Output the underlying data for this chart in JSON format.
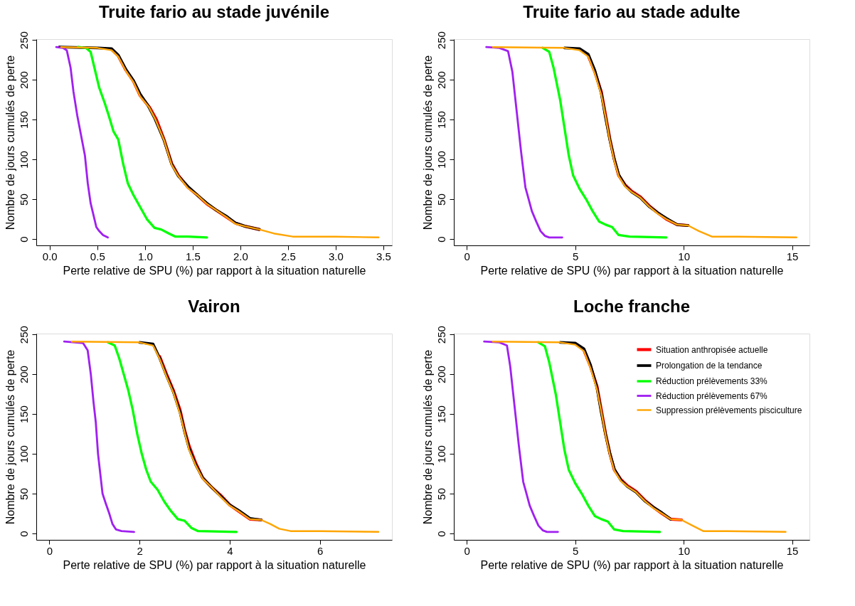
{
  "chart_data": [
    {
      "type": "line",
      "title": "Truite fario au stade juvénile",
      "xlabel": "Perte relative de SPU (%) par rapport à la situation naturelle",
      "ylabel": "Nombre de jours cumulés de perte",
      "xlim": [
        -0.14,
        3.59
      ],
      "ylim": [
        -8,
        251
      ],
      "xticks": [
        {
          "value": 0,
          "label": "0.0"
        },
        {
          "value": 0.5,
          "label": "0.5"
        },
        {
          "value": 1,
          "label": "1.0"
        },
        {
          "value": 1.5,
          "label": "1.5"
        },
        {
          "value": 2,
          "label": "2.0"
        },
        {
          "value": 2.5,
          "label": "2.5"
        },
        {
          "value": 3,
          "label": "3.0"
        },
        {
          "value": 3.5,
          "label": "3.5"
        }
      ],
      "yticks": [
        0,
        50,
        100,
        150,
        200,
        250
      ],
      "series": [
        {
          "color": "#ff0000",
          "x": [
            0.65,
            0.72,
            0.8,
            0.88,
            0.95,
            1.05,
            1.12,
            1.2,
            1.28,
            1.35,
            1.45,
            1.55,
            1.65,
            1.75,
            1.85,
            1.95,
            2.05,
            2.2
          ],
          "values": [
            238,
            230,
            212,
            198,
            180,
            165,
            150,
            125,
            95,
            80,
            65,
            55,
            44,
            36,
            28,
            20,
            16,
            12
          ]
        },
        {
          "color": "#000000",
          "x": [
            0.1,
            0.5,
            0.65,
            0.72,
            0.8,
            0.88,
            0.95,
            1.03,
            1.1,
            1.2,
            1.28,
            1.35,
            1.45,
            1.55,
            1.65,
            1.75,
            1.85,
            1.95,
            2.05,
            2.2
          ],
          "values": [
            241,
            240,
            239,
            231,
            213,
            199,
            182,
            168,
            152,
            124,
            94,
            79,
            66,
            55,
            45,
            36,
            29,
            20,
            16,
            12
          ]
        },
        {
          "color": "#00ff00",
          "x": [
            0.3,
            0.38,
            0.43,
            0.47,
            0.52,
            0.58,
            0.62,
            0.67,
            0.72,
            0.77,
            0.82,
            0.88,
            0.95,
            1.02,
            1.1,
            1.17,
            1.25,
            1.32,
            1.45,
            1.65
          ],
          "values": [
            241,
            240,
            235,
            215,
            190,
            170,
            155,
            135,
            125,
            95,
            70,
            55,
            40,
            25,
            14,
            12,
            7,
            3,
            3,
            2
          ]
        },
        {
          "color": "#a020f0",
          "x": [
            0.07,
            0.14,
            0.18,
            0.22,
            0.25,
            0.29,
            0.33,
            0.37,
            0.4,
            0.43,
            0.46,
            0.49,
            0.52,
            0.56,
            0.61
          ],
          "values": [
            241,
            240,
            237,
            215,
            185,
            155,
            130,
            105,
            70,
            45,
            30,
            15,
            10,
            5,
            2
          ]
        },
        {
          "color": "#ffa500",
          "x": [
            0.12,
            0.5,
            0.65,
            0.72,
            0.8,
            0.88,
            0.95,
            1.04,
            1.11,
            1.2,
            1.28,
            1.35,
            1.45,
            1.55,
            1.65,
            1.75,
            1.85,
            1.95,
            2.05,
            2.2,
            2.35,
            2.55,
            3.0,
            3.45
          ],
          "values": [
            241,
            240,
            237,
            229,
            211,
            197,
            179,
            166,
            150,
            124,
            93,
            79,
            64,
            55,
            44,
            36,
            28,
            19,
            16,
            12,
            7,
            3,
            3,
            2
          ]
        }
      ]
    },
    {
      "type": "line",
      "title": "Truite fario au stade adulte",
      "xlabel": "Perte relative de SPU (%) par rapport à la situation naturelle",
      "ylabel": "Nombre de jours cumulés de perte",
      "xlim": [
        -0.6,
        15.8
      ],
      "ylim": [
        -8,
        251
      ],
      "xticks": [
        0,
        5,
        10,
        15
      ],
      "yticks": [
        0,
        50,
        100,
        150,
        200,
        250
      ],
      "series": [
        {
          "color": "#ff0000",
          "x": [
            5.6,
            5.9,
            6.2,
            6.4,
            6.6,
            6.8,
            7.0,
            7.3,
            7.6,
            8.0,
            8.4,
            8.8,
            9.2,
            9.7,
            10.2
          ],
          "values": [
            230,
            210,
            185,
            155,
            125,
            100,
            80,
            68,
            60,
            53,
            42,
            33,
            25,
            18,
            17
          ]
        },
        {
          "color": "#000000",
          "x": [
            4.5,
            5.2,
            5.6,
            5.9,
            6.2,
            6.4,
            6.6,
            6.8,
            7.0,
            7.3,
            7.6,
            8.0,
            8.4,
            8.8,
            9.2,
            9.7,
            10.2
          ],
          "values": [
            240,
            239,
            232,
            212,
            183,
            152,
            124,
            100,
            81,
            67,
            59,
            52,
            41,
            33,
            26,
            18,
            17
          ]
        },
        {
          "color": "#00ff00",
          "x": [
            3.5,
            3.8,
            4.0,
            4.3,
            4.5,
            4.7,
            4.9,
            5.2,
            5.5,
            5.8,
            6.1,
            6.4,
            6.7,
            7.0,
            7.5,
            9.2
          ],
          "values": [
            240,
            235,
            215,
            175,
            140,
            105,
            80,
            63,
            50,
            35,
            22,
            18,
            15,
            5,
            3,
            2
          ]
        },
        {
          "color": "#a020f0",
          "x": [
            0.9,
            1.5,
            1.9,
            2.1,
            2.3,
            2.5,
            2.7,
            2.8,
            3.0,
            3.2,
            3.4,
            3.6,
            3.8,
            4.4
          ],
          "values": [
            241,
            240,
            236,
            210,
            160,
            110,
            65,
            55,
            35,
            22,
            10,
            4,
            2,
            2
          ]
        },
        {
          "color": "#ffa500",
          "x": [
            1.2,
            4.5,
            5.2,
            5.6,
            5.9,
            6.2,
            6.4,
            6.6,
            6.8,
            7.0,
            7.3,
            7.6,
            8.0,
            8.4,
            8.8,
            9.2,
            9.7,
            10.2,
            10.7,
            11.3,
            12.5,
            15.2
          ],
          "values": [
            241,
            240,
            237,
            229,
            208,
            181,
            153,
            123,
            98,
            79,
            66,
            59,
            52,
            41,
            32,
            25,
            18,
            17,
            10,
            3,
            3,
            2
          ]
        }
      ]
    },
    {
      "type": "line",
      "title": "Vairon",
      "xlabel": "Perte relative de SPU (%) par rapport à la situation naturelle",
      "ylabel": "Nombre de jours cumulés de perte",
      "xlim": [
        -0.29,
        7.6
      ],
      "ylim": [
        -8,
        251
      ],
      "xticks": [
        0,
        2,
        4,
        6
      ],
      "yticks": [
        0,
        50,
        100,
        150,
        200,
        250
      ],
      "series": [
        {
          "color": "#ff0000",
          "x": [
            2.45,
            2.6,
            2.75,
            2.9,
            3.0,
            3.1,
            3.25,
            3.4,
            3.6,
            3.8,
            4.0,
            4.2,
            4.45,
            4.7
          ],
          "values": [
            222,
            200,
            180,
            155,
            130,
            110,
            88,
            70,
            58,
            48,
            36,
            28,
            18,
            17
          ]
        },
        {
          "color": "#000000",
          "x": [
            2.0,
            2.3,
            2.45,
            2.6,
            2.75,
            2.9,
            3.0,
            3.1,
            3.25,
            3.4,
            3.6,
            3.8,
            4.0,
            4.2,
            4.45,
            4.7
          ],
          "values": [
            240,
            238,
            220,
            198,
            178,
            152,
            128,
            107,
            86,
            70,
            58,
            47,
            36,
            29,
            19,
            17
          ]
        },
        {
          "color": "#00ff00",
          "x": [
            1.3,
            1.45,
            1.55,
            1.65,
            1.75,
            1.85,
            1.95,
            2.05,
            2.15,
            2.25,
            2.4,
            2.55,
            2.7,
            2.85,
            3.0,
            3.15,
            3.3,
            4.15
          ],
          "values": [
            240,
            236,
            220,
            200,
            180,
            155,
            125,
            100,
            80,
            65,
            55,
            40,
            28,
            18,
            16,
            7,
            3,
            2
          ]
        },
        {
          "color": "#a020f0",
          "x": [
            0.33,
            0.75,
            0.85,
            0.92,
            0.98,
            1.03,
            1.08,
            1.13,
            1.18,
            1.25,
            1.33,
            1.4,
            1.48,
            1.6,
            1.88
          ],
          "values": [
            241,
            239,
            230,
            200,
            165,
            140,
            100,
            75,
            50,
            38,
            25,
            12,
            5,
            3,
            2
          ]
        },
        {
          "color": "#ffa500",
          "x": [
            0.5,
            2.0,
            2.3,
            2.45,
            2.6,
            2.75,
            2.9,
            3.0,
            3.1,
            3.25,
            3.4,
            3.6,
            3.8,
            4.0,
            4.2,
            4.45,
            4.7,
            4.9,
            5.1,
            5.35,
            6.0,
            7.3
          ],
          "values": [
            241,
            240,
            236,
            219,
            197,
            177,
            150,
            127,
            105,
            85,
            69,
            58,
            46,
            35,
            28,
            18,
            17,
            12,
            6,
            3,
            3,
            2
          ]
        }
      ]
    },
    {
      "type": "line",
      "title": "Loche franche",
      "xlabel": "Perte relative de SPU (%) par rapport à la situation naturelle",
      "ylabel": "Nombre de jours cumulés de perte",
      "xlim": [
        -0.6,
        15.8
      ],
      "ylim": [
        -8,
        251
      ],
      "xticks": [
        0,
        5,
        10,
        15
      ],
      "yticks": [
        0,
        50,
        100,
        150,
        200,
        250
      ],
      "legend": "top right",
      "series": [
        {
          "name": "Situation anthropisée actuelle",
          "color": "#ff0000",
          "x": [
            5.4,
            5.7,
            6.0,
            6.2,
            6.4,
            6.6,
            6.8,
            7.1,
            7.4,
            7.8,
            8.2,
            8.6,
            9.0,
            9.4,
            9.9
          ],
          "values": [
            230,
            210,
            185,
            155,
            125,
            100,
            80,
            68,
            60,
            53,
            42,
            33,
            25,
            18,
            17
          ]
        },
        {
          "name": "Prolongation de la tendance",
          "color": "#000000",
          "x": [
            4.3,
            5.0,
            5.4,
            5.7,
            6.0,
            6.2,
            6.4,
            6.6,
            6.8,
            7.1,
            7.4,
            7.8,
            8.2,
            8.6,
            9.0,
            9.4
          ],
          "values": [
            240,
            239,
            232,
            212,
            183,
            152,
            124,
            100,
            81,
            67,
            59,
            52,
            41,
            33,
            26,
            18
          ]
        },
        {
          "name": "Réduction prélèvements 33%",
          "color": "#00ff00",
          "x": [
            3.3,
            3.6,
            3.8,
            4.1,
            4.3,
            4.5,
            4.7,
            5.0,
            5.3,
            5.6,
            5.9,
            6.2,
            6.5,
            6.8,
            7.2,
            8.9
          ],
          "values": [
            240,
            235,
            215,
            175,
            140,
            105,
            80,
            63,
            50,
            35,
            22,
            18,
            15,
            5,
            3,
            2
          ]
        },
        {
          "name": "Réduction prélèvements 67%",
          "color": "#a020f0",
          "x": [
            0.8,
            1.5,
            1.85,
            2.0,
            2.2,
            2.4,
            2.6,
            2.7,
            2.9,
            3.1,
            3.3,
            3.5,
            3.7,
            4.2
          ],
          "values": [
            241,
            240,
            236,
            210,
            160,
            110,
            65,
            55,
            35,
            22,
            10,
            4,
            2,
            2
          ]
        },
        {
          "name": "Suppression prélèvements pisciculture",
          "color": "#ffa500",
          "x": [
            1.2,
            4.3,
            5.0,
            5.4,
            5.7,
            6.0,
            6.2,
            6.4,
            6.6,
            6.8,
            7.1,
            7.4,
            7.8,
            8.2,
            8.6,
            9.0,
            9.4,
            9.9,
            10.4,
            10.9,
            12.0,
            14.7
          ],
          "values": [
            241,
            240,
            237,
            229,
            208,
            181,
            153,
            123,
            98,
            79,
            66,
            59,
            52,
            41,
            32,
            25,
            18,
            17,
            10,
            3,
            3,
            2
          ]
        }
      ]
    }
  ]
}
